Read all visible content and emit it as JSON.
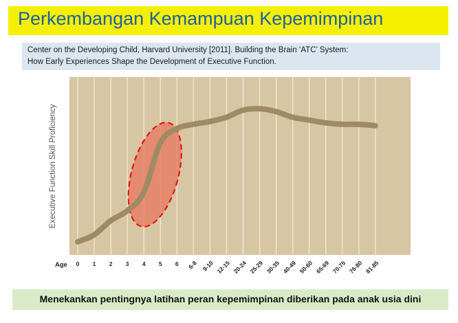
{
  "title": "Perkembangan Kemampuan Kepemimpinan",
  "citation": {
    "line1": "Center on the Developing Child, Harvard University [2011]. Building the Brain ‘ATC’ System:",
    "line2": "How Early Experiences Shape the Development of Executive Function."
  },
  "footer": "Menekankan pentingnya latihan peran kepemimpinan diberikan pada anak usia dini",
  "colors": {
    "title_bg": "#f5f000",
    "title_text": "#1f5fa8",
    "citation_bg": "#dce6f1",
    "footer_bg": "#d8ebc6",
    "plot_bg": "#d7c6a4",
    "curve": "#a08a66",
    "highlight_fill": "#e8735a",
    "highlight_stroke": "#e01818"
  },
  "chart_data": {
    "type": "line",
    "ylabel": "Executive Function Skill Proficiency",
    "x_axis_label": "Age",
    "categories": [
      "0",
      "1",
      "2",
      "3",
      "4",
      "5",
      "6",
      "6-8",
      "9-10",
      "12-15",
      "20-24",
      "25-29",
      "30-35",
      "40-49",
      "50-60",
      "65-69",
      "70-75",
      "76-80",
      "81-85"
    ],
    "grid": true,
    "ylim": [
      0,
      100
    ],
    "series": [
      {
        "values": [
          2,
          7,
          17,
          24,
          37,
          72,
          82,
          85,
          87,
          90,
          95,
          96,
          94,
          90,
          88,
          86,
          85,
          85,
          84
        ]
      }
    ],
    "highlight": {
      "shape": "dashed-ellipse",
      "from_category": "3",
      "to_category": "6"
    }
  }
}
